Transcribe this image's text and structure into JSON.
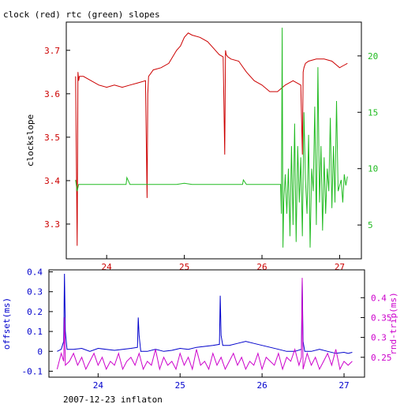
{
  "title": "clock (red) rtc (green) slopes",
  "footer": "2007-12-23 inflaton",
  "chart_data": [
    {
      "type": "line",
      "ylabel_left": "clockslope",
      "ylabel_right": "",
      "x_range": [
        23.48,
        27.28
      ],
      "y_left_range": [
        3.22,
        3.765
      ],
      "y_right_range": [
        2.0,
        23.0
      ],
      "x_ticks": [
        24,
        25,
        26,
        27
      ],
      "y_left_ticks": [
        3.3,
        3.4,
        3.5,
        3.6,
        3.7
      ],
      "y_right_ticks": [
        5,
        10,
        15,
        20
      ],
      "colors": {
        "left_axis": "#cc0000",
        "right_axis": "#22bb22",
        "x_axis": "#cc0000",
        "frame": "#000000"
      },
      "series": [
        {
          "axis": "left",
          "color": "#cc0000",
          "x": [
            23.6,
            23.62,
            23.63,
            23.64,
            23.65,
            23.7,
            23.8,
            23.9,
            24.0,
            24.1,
            24.2,
            24.3,
            24.4,
            24.5,
            24.52,
            24.53,
            24.54,
            24.56,
            24.6,
            24.7,
            24.8,
            24.9,
            24.95,
            25.0,
            25.05,
            25.1,
            25.2,
            25.3,
            25.4,
            25.45,
            25.5,
            25.52,
            25.53,
            25.54,
            25.56,
            25.6,
            25.7,
            25.8,
            25.9,
            26.0,
            26.1,
            26.2,
            26.3,
            26.4,
            26.5,
            26.52,
            26.53,
            26.54,
            26.56,
            26.6,
            26.7,
            26.8,
            26.9,
            27.0,
            27.05,
            27.1
          ],
          "y": [
            3.64,
            3.25,
            3.65,
            3.63,
            3.64,
            3.64,
            3.63,
            3.62,
            3.615,
            3.62,
            3.615,
            3.62,
            3.625,
            3.63,
            3.36,
            3.6,
            3.64,
            3.645,
            3.655,
            3.66,
            3.67,
            3.7,
            3.71,
            3.73,
            3.74,
            3.735,
            3.73,
            3.72,
            3.7,
            3.69,
            3.685,
            3.46,
            3.7,
            3.69,
            3.685,
            3.68,
            3.675,
            3.65,
            3.63,
            3.62,
            3.605,
            3.605,
            3.62,
            3.63,
            3.62,
            3.46,
            3.65,
            3.66,
            3.67,
            3.675,
            3.68,
            3.68,
            3.675,
            3.66,
            3.665,
            3.67
          ]
        },
        {
          "axis": "right",
          "color": "#22bb22",
          "x": [
            23.6,
            23.62,
            23.64,
            23.7,
            23.8,
            23.9,
            24.0,
            24.1,
            24.2,
            24.25,
            24.26,
            24.3,
            24.4,
            24.5,
            24.6,
            24.7,
            24.8,
            24.9,
            25.0,
            25.1,
            25.2,
            25.3,
            25.4,
            25.5,
            25.6,
            25.7,
            25.75,
            25.76,
            25.8,
            25.9,
            26.0,
            26.1,
            26.2,
            26.24,
            26.25,
            26.26,
            26.27,
            26.28,
            26.3,
            26.32,
            26.34,
            26.36,
            26.38,
            26.4,
            26.42,
            26.44,
            26.46,
            26.48,
            26.5,
            26.52,
            26.54,
            26.56,
            26.58,
            26.6,
            26.62,
            26.64,
            26.66,
            26.68,
            26.7,
            26.72,
            26.74,
            26.76,
            26.78,
            26.8,
            26.82,
            26.84,
            26.86,
            26.88,
            26.9,
            26.92,
            26.94,
            26.96,
            26.98,
            27.0,
            27.02,
            27.04,
            27.06,
            27.08,
            27.1
          ],
          "y": [
            9.0,
            8.0,
            8.6,
            8.6,
            8.6,
            8.6,
            8.6,
            8.6,
            8.6,
            8.6,
            9.2,
            8.6,
            8.6,
            8.6,
            8.6,
            8.6,
            8.6,
            8.6,
            8.7,
            8.6,
            8.6,
            8.6,
            8.6,
            8.6,
            8.6,
            8.6,
            8.6,
            9.0,
            8.6,
            8.6,
            8.6,
            8.6,
            8.6,
            8.6,
            6.0,
            22.5,
            3.0,
            7.0,
            9.5,
            6.0,
            10.0,
            4.0,
            12.0,
            5.0,
            14.0,
            3.5,
            12.0,
            7.0,
            11.0,
            4.0,
            15.0,
            9.0,
            6.0,
            13.0,
            3.0,
            10.0,
            8.0,
            15.5,
            5.0,
            19.0,
            7.0,
            12.0,
            4.5,
            11.0,
            6.0,
            10.0,
            8.0,
            14.5,
            6.5,
            12.0,
            7.0,
            16.0,
            8.0,
            8.5,
            9.0,
            7.0,
            9.5,
            8.5,
            9.3
          ]
        }
      ]
    },
    {
      "type": "line",
      "ylabel_left": "offset(ms)",
      "ylabel_right": "rnd-trip(ms)",
      "x_range": [
        23.4,
        27.25
      ],
      "y_left_range": [
        -0.13,
        0.41
      ],
      "y_right_range": [
        0.2,
        0.47
      ],
      "x_ticks": [
        24,
        25,
        26,
        27
      ],
      "y_left_ticks": [
        -0.1,
        0,
        0.1,
        0.2,
        0.3,
        0.4
      ],
      "y_right_ticks": [
        0.25,
        0.3,
        0.35,
        0.4
      ],
      "colors": {
        "left_axis": "#0000cc",
        "right_axis": "#cc00cc",
        "x_axis": "#0000cc",
        "frame": "#000000"
      },
      "series": [
        {
          "axis": "left",
          "color": "#0000cc",
          "x": [
            23.5,
            23.55,
            23.58,
            23.59,
            23.6,
            23.62,
            23.7,
            23.8,
            23.9,
            24.0,
            24.1,
            24.2,
            24.3,
            24.4,
            24.48,
            24.49,
            24.5,
            24.52,
            24.6,
            24.7,
            24.8,
            24.9,
            25.0,
            25.1,
            25.2,
            25.3,
            25.4,
            25.48,
            25.49,
            25.5,
            25.52,
            25.6,
            25.7,
            25.8,
            25.9,
            26.0,
            26.1,
            26.2,
            26.3,
            26.4,
            26.48,
            26.49,
            26.5,
            26.52,
            26.6,
            26.7,
            26.8,
            26.9,
            27.0,
            27.05,
            27.1
          ],
          "y": [
            0.0,
            0.01,
            0.05,
            0.39,
            0.1,
            0.01,
            0.01,
            0.015,
            0.0,
            0.015,
            0.01,
            0.005,
            0.01,
            0.015,
            0.02,
            0.17,
            0.08,
            0.0,
            0.0,
            0.01,
            0.0,
            0.005,
            0.015,
            0.01,
            0.02,
            0.025,
            0.03,
            0.035,
            0.28,
            0.08,
            0.03,
            0.03,
            0.04,
            0.05,
            0.04,
            0.03,
            0.02,
            0.01,
            0.0,
            0.0,
            0.01,
            0.36,
            0.05,
            0.0,
            0.0,
            0.01,
            0.0,
            -0.01,
            -0.005,
            -0.01,
            -0.005
          ]
        },
        {
          "axis": "right",
          "color": "#cc00cc",
          "x": [
            23.5,
            23.55,
            23.58,
            23.59,
            23.6,
            23.65,
            23.7,
            23.75,
            23.8,
            23.85,
            23.9,
            23.95,
            24.0,
            24.05,
            24.1,
            24.15,
            24.2,
            24.25,
            24.3,
            24.35,
            24.4,
            24.45,
            24.5,
            24.55,
            24.6,
            24.65,
            24.7,
            24.75,
            24.8,
            24.85,
            24.9,
            24.95,
            25.0,
            25.05,
            25.1,
            25.15,
            25.2,
            25.25,
            25.3,
            25.35,
            25.4,
            25.45,
            25.5,
            25.55,
            25.6,
            25.65,
            25.7,
            25.75,
            25.8,
            25.85,
            25.9,
            25.95,
            26.0,
            26.05,
            26.1,
            26.15,
            26.2,
            26.25,
            26.3,
            26.35,
            26.4,
            26.45,
            26.48,
            26.49,
            26.5,
            26.55,
            26.6,
            26.65,
            26.7,
            26.75,
            26.8,
            26.85,
            26.9,
            26.95,
            27.0,
            27.05,
            27.1
          ],
          "y": [
            0.22,
            0.26,
            0.24,
            0.35,
            0.23,
            0.24,
            0.26,
            0.23,
            0.25,
            0.22,
            0.24,
            0.26,
            0.23,
            0.25,
            0.22,
            0.24,
            0.23,
            0.26,
            0.22,
            0.24,
            0.25,
            0.23,
            0.26,
            0.22,
            0.24,
            0.23,
            0.27,
            0.22,
            0.25,
            0.23,
            0.24,
            0.22,
            0.26,
            0.23,
            0.25,
            0.22,
            0.27,
            0.23,
            0.24,
            0.22,
            0.26,
            0.23,
            0.25,
            0.22,
            0.24,
            0.26,
            0.23,
            0.25,
            0.22,
            0.24,
            0.23,
            0.26,
            0.22,
            0.25,
            0.24,
            0.23,
            0.26,
            0.22,
            0.25,
            0.24,
            0.27,
            0.23,
            0.25,
            0.45,
            0.22,
            0.26,
            0.23,
            0.25,
            0.22,
            0.24,
            0.26,
            0.23,
            0.27,
            0.22,
            0.24,
            0.23,
            0.24
          ]
        }
      ]
    }
  ]
}
